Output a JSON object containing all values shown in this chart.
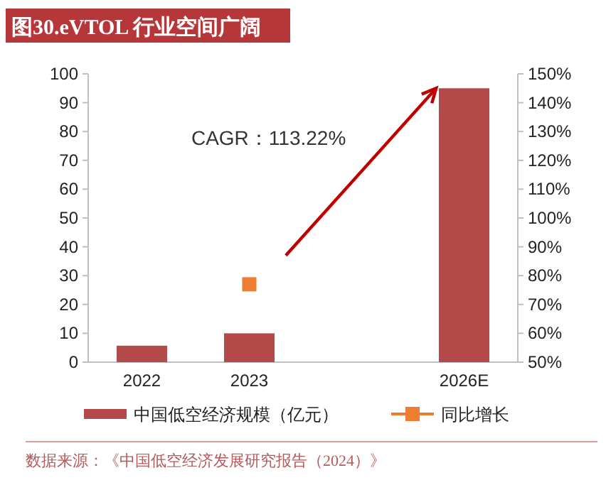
{
  "chart_data": {
    "type": "bar",
    "title": "图30.eVTOL 行业空间广阔",
    "categories": [
      "2022",
      "2023",
      null,
      "2026E"
    ],
    "series": [
      {
        "name": "中国低空经济规模（亿元）",
        "color": "#b4494a",
        "values": [
          5.7,
          10,
          null,
          95
        ]
      },
      {
        "name": "同比增长",
        "type": "line",
        "axis": "y2",
        "color": "#ed7d31",
        "marker": "square",
        "values": [
          null,
          77,
          null,
          null
        ]
      }
    ],
    "ylim": [
      0,
      100
    ],
    "yticks": [
      0,
      10,
      20,
      30,
      40,
      50,
      60,
      70,
      80,
      90,
      100
    ],
    "y2lim": [
      50,
      150
    ],
    "y2ticks": [
      {
        "value": 50,
        "label": "50%"
      },
      {
        "value": 60,
        "label": "60%"
      },
      {
        "value": 70,
        "label": "70%"
      },
      {
        "value": 80,
        "label": "80%"
      },
      {
        "value": 90,
        "label": "90%"
      },
      {
        "value": 100,
        "label": "100%"
      },
      {
        "value": 110,
        "label": "110%"
      },
      {
        "value": 120,
        "label": "120%"
      },
      {
        "value": 130,
        "label": "130%"
      },
      {
        "value": 140,
        "label": "140%"
      },
      {
        "value": 150,
        "label": "150%"
      }
    ],
    "legend": "bottom",
    "grid": false,
    "annotations": [
      "CAGR：113.22%",
      "数据来源：《中国低空经济发展研究报告（2024）》"
    ]
  }
}
